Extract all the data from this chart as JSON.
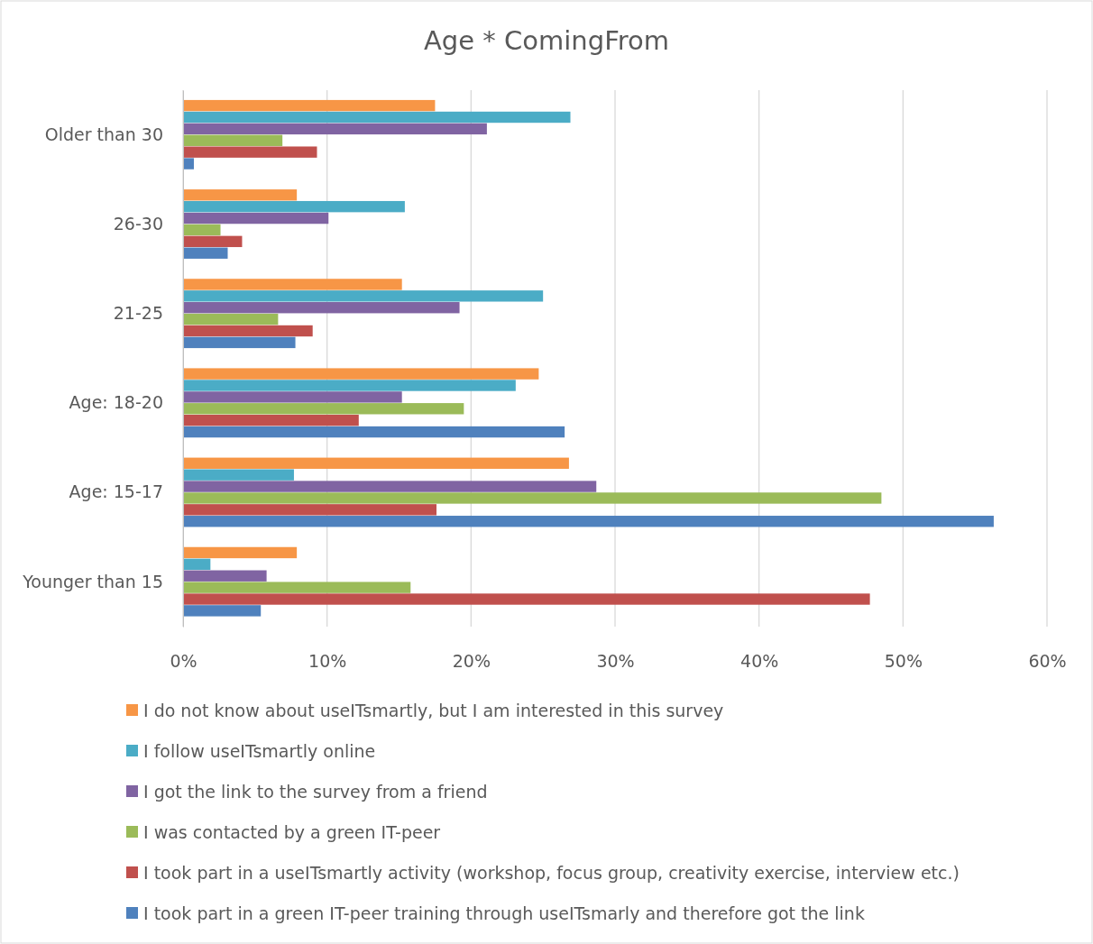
{
  "chart_data": {
    "type": "bar",
    "orientation": "horizontal",
    "title": "Age * ComingFrom",
    "categories": [
      "Older than 30",
      "26-30",
      "21-25",
      "Age: 18-20",
      "Age: 15-17",
      "Younger than 15"
    ],
    "series": [
      {
        "name": "I do not know about useITsmartly, but I am interested in this survey",
        "color": "#f79646",
        "values": [
          17.5,
          7.9,
          15.2,
          24.7,
          26.8,
          7.9
        ]
      },
      {
        "name": "I follow useITsmartly online",
        "color": "#4bacc6",
        "values": [
          26.9,
          15.4,
          25.0,
          23.1,
          7.7,
          1.9
        ]
      },
      {
        "name": "I got the link to the survey from a friend",
        "color": "#8064a2",
        "values": [
          21.1,
          10.1,
          19.2,
          15.2,
          28.7,
          5.8
        ]
      },
      {
        "name": "I was contacted by a green IT-peer",
        "color": "#9bbb59",
        "values": [
          6.9,
          2.6,
          6.6,
          19.5,
          48.5,
          15.8
        ]
      },
      {
        "name": "I took part in a useITsmartly activity (workshop, focus group, creativity exercise, interview etc.)",
        "color": "#c0504d",
        "values": [
          9.3,
          4.1,
          9.0,
          12.2,
          17.6,
          47.7
        ]
      },
      {
        "name": "I took part in a green IT-peer training through useITsmarly and therefore got the link",
        "color": "#4f81bd",
        "values": [
          0.75,
          3.1,
          7.8,
          26.5,
          56.3,
          5.4
        ]
      }
    ],
    "xlim": [
      0,
      60
    ],
    "xticks": [
      {
        "value": 0,
        "label": "0%"
      },
      {
        "value": 10,
        "label": "10%"
      },
      {
        "value": 20,
        "label": "20%"
      },
      {
        "value": 30,
        "label": "30%"
      },
      {
        "value": 40,
        "label": "40%"
      },
      {
        "value": 50,
        "label": "50%"
      },
      {
        "value": 60,
        "label": "60%"
      }
    ],
    "grid": "x",
    "legend": "bottom"
  }
}
